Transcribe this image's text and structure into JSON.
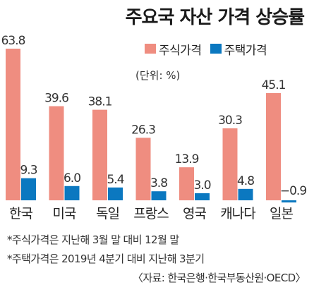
{
  "title": "주요국 자산 가격 상승률",
  "unit_note": "(단위: %)",
  "footnotes": [
    "*주식가격은 지난해 3월 말 대비 12월 말",
    "*주택가격은 2019년 4분기 대비 지난해 3분기"
  ],
  "source": "〈자료: 한국은행·한국부동산원·OECD〉",
  "colors": {
    "stock": "#ef8d80",
    "house": "#0b78c0"
  },
  "chart_data": {
    "type": "bar",
    "title": "주요국 자산 가격 상승률",
    "categories": [
      "한국",
      "미국",
      "독일",
      "프랑스",
      "영국",
      "캐나다",
      "일본"
    ],
    "series": [
      {
        "name": "주식가격",
        "values": [
          63.8,
          39.6,
          38.1,
          26.3,
          13.9,
          30.3,
          45.1
        ]
      },
      {
        "name": "주택가격",
        "values": [
          9.3,
          6.0,
          5.4,
          3.8,
          3.0,
          4.8,
          -0.9
        ]
      }
    ],
    "value_labels": [
      [
        "63.8",
        "39.6",
        "38.1",
        "26.3",
        "13.9",
        "30.3",
        "45.1"
      ],
      [
        "9.3",
        "6.0",
        "5.4",
        "3.8",
        "3.0",
        "4.8",
        "−0.9"
      ]
    ],
    "ylabel": "",
    "legend": "top-right",
    "grid": false
  }
}
